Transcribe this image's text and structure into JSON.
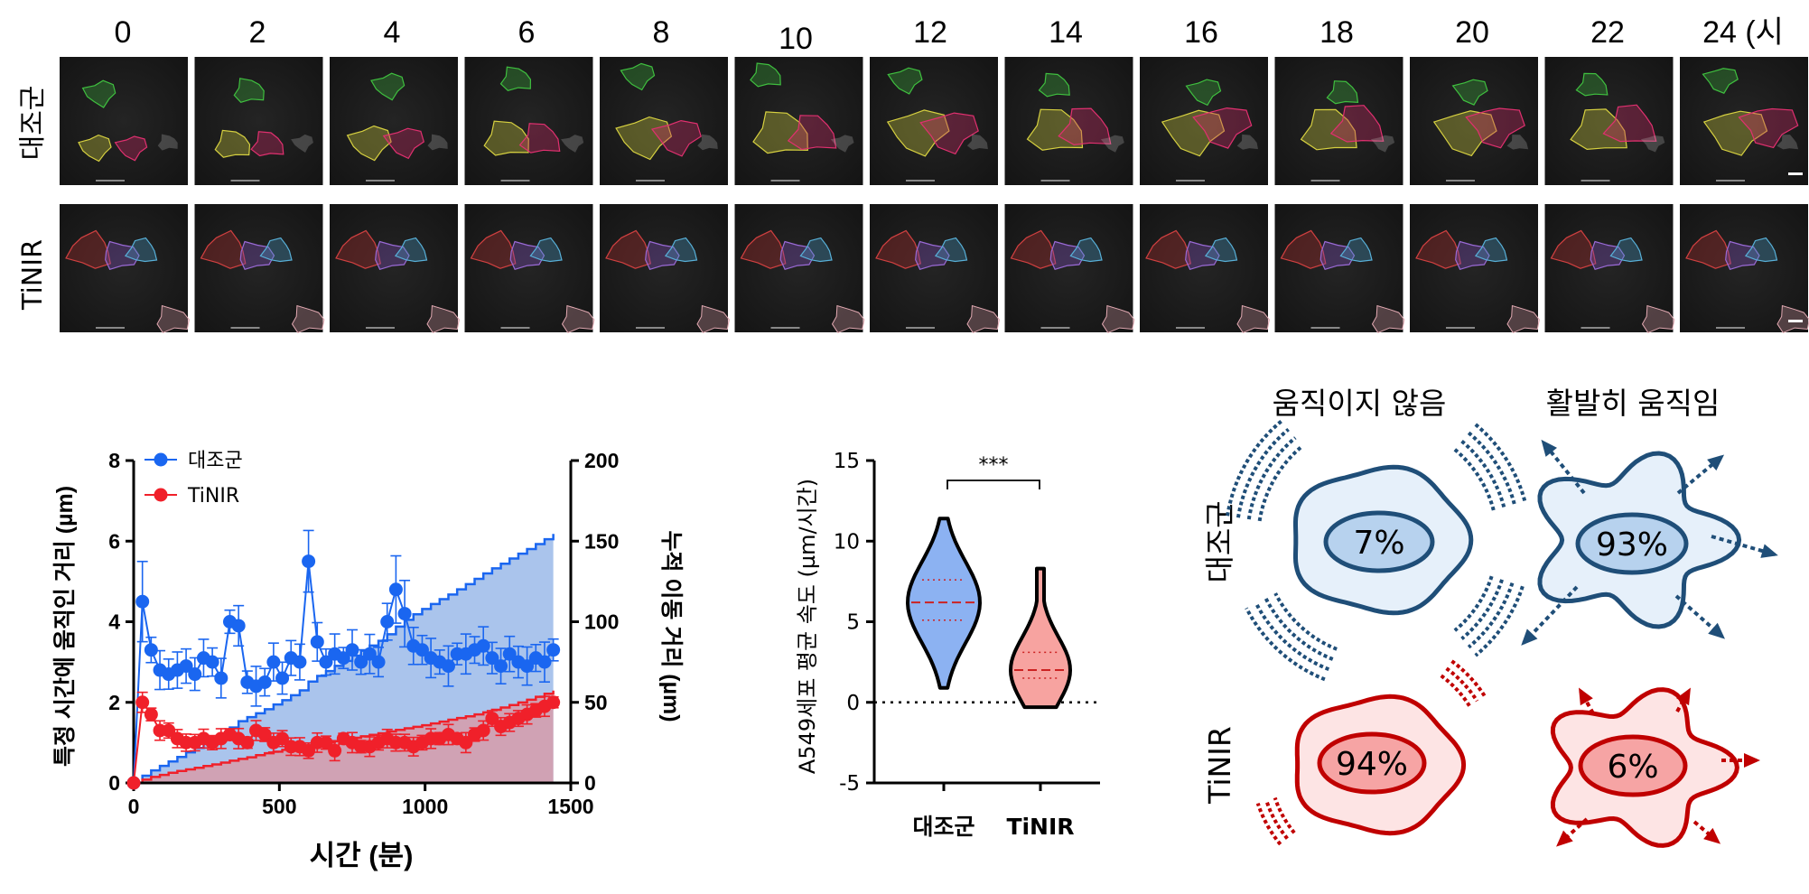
{
  "time_points": [
    "0",
    "2",
    "4",
    "6",
    "8",
    "10",
    "12",
    "14",
    "16",
    "18",
    "20",
    "22",
    "24 (시"
  ],
  "row_labels": [
    "대조군",
    "TiNIR"
  ],
  "panel_b": {
    "legend": [
      "대조군",
      "TiNIR"
    ],
    "xlabel": "시간 (분)",
    "ylabel_left": "특정 시간에 움직인 거리 (µm)",
    "ylabel_right": "누적 이동 거리 (µm)",
    "x_ticks": [
      "0",
      "500",
      "1000",
      "1500"
    ],
    "y_left_ticks": [
      "0",
      "2",
      "4",
      "6",
      "8"
    ],
    "y_right_ticks": [
      "0",
      "50",
      "100",
      "150",
      "200"
    ]
  },
  "panel_c": {
    "ylabel": "A549세포 평균 속도 (µm/시간)",
    "y_ticks": [
      "-5",
      "0",
      "5",
      "10",
      "15"
    ],
    "categories": [
      "대조군",
      "TiNIR"
    ],
    "significance": "***"
  },
  "panel_d": {
    "col_labels": [
      "움직이지 않음",
      "활발히 움직임"
    ],
    "row_labels": [
      "대조군",
      "TiNIR"
    ],
    "cells": [
      [
        "7%",
        "93%"
      ],
      [
        "94%",
        "6%"
      ]
    ]
  },
  "colors": {
    "control": "#1a66f0",
    "tinir": "#f0202a",
    "control_area": "#aac4ec",
    "tinir_area": "#d0a2b4",
    "cell_control_fill": "#e6f0fa",
    "cell_control_stroke": "#1f4e78",
    "cell_tinir_fill": "#fde4e4",
    "cell_tinir_stroke": "#c00000"
  },
  "chart_data": [
    {
      "type": "line",
      "x": [
        0,
        30,
        60,
        90,
        120,
        150,
        180,
        210,
        240,
        270,
        300,
        330,
        360,
        390,
        420,
        450,
        480,
        510,
        540,
        570,
        600,
        630,
        660,
        690,
        720,
        750,
        780,
        810,
        840,
        870,
        900,
        930,
        960,
        990,
        1020,
        1050,
        1080,
        1110,
        1140,
        1170,
        1200,
        1230,
        1260,
        1290,
        1320,
        1350,
        1380,
        1410,
        1440
      ],
      "xlim": [
        0,
        1500
      ],
      "ylim": [
        0,
        8
      ],
      "y2lim": [
        0,
        200
      ],
      "series": [
        {
          "name": "대조군",
          "axis": "left",
          "values": [
            0,
            4.5,
            3.3,
            2.8,
            2.7,
            2.8,
            2.9,
            2.7,
            3.1,
            3.0,
            2.6,
            4.0,
            3.9,
            2.5,
            2.4,
            2.5,
            3.0,
            2.6,
            3.1,
            3.0,
            5.5,
            3.5,
            3.0,
            3.2,
            3.1,
            3.3,
            3.0,
            3.2,
            3.0,
            4.0,
            4.8,
            4.2,
            3.4,
            3.3,
            3.1,
            3.0,
            2.9,
            3.2,
            3.2,
            3.3,
            3.4,
            3.1,
            2.9,
            3.2,
            3.0,
            2.9,
            3.1,
            3.0,
            3.3
          ]
        },
        {
          "name": "TiNIR",
          "axis": "left",
          "values": [
            0,
            2.0,
            1.7,
            1.3,
            1.3,
            1.1,
            1.0,
            1.0,
            1.1,
            1.0,
            1.1,
            1.2,
            1.1,
            1.0,
            1.3,
            1.2,
            1.0,
            1.1,
            0.9,
            0.9,
            0.8,
            1.0,
            1.0,
            0.8,
            1.1,
            1.0,
            0.9,
            0.9,
            1.0,
            1.1,
            1.0,
            1.0,
            0.9,
            1.0,
            1.1,
            1.1,
            1.2,
            1.1,
            1.0,
            1.2,
            1.3,
            1.6,
            1.4,
            1.5,
            1.6,
            1.7,
            1.8,
            1.9,
            2.0
          ]
        },
        {
          "name": "대조군 (누적)",
          "axis": "right",
          "values": [
            0,
            4.5,
            7.8,
            10.6,
            13.3,
            16.1,
            19.0,
            21.7,
            24.8,
            27.8,
            30.4,
            34.4,
            38.3,
            40.8,
            43.2,
            45.7,
            48.7,
            51.3,
            54.4,
            57.4,
            62.9,
            66.4,
            69.4,
            72.6,
            75.7,
            79.0,
            82.0,
            85.2,
            88.2,
            92.2,
            97.0,
            101.2,
            104.6,
            107.9,
            111.0,
            114.0,
            116.9,
            120.1,
            123.3,
            126.6,
            130.0,
            133.1,
            136.0,
            139.2,
            142.2,
            145.1,
            148.2,
            151.2,
            154.5
          ]
        },
        {
          "name": "TiNIR (누적)",
          "axis": "right",
          "values": [
            0,
            2.0,
            3.7,
            5.0,
            6.3,
            7.4,
            8.4,
            9.4,
            10.5,
            11.5,
            12.6,
            13.8,
            14.9,
            15.9,
            17.2,
            18.4,
            19.4,
            20.5,
            21.4,
            22.3,
            23.1,
            24.1,
            25.1,
            25.9,
            27.0,
            28.0,
            28.9,
            29.8,
            30.8,
            31.9,
            32.9,
            33.9,
            34.8,
            35.8,
            36.9,
            38.0,
            39.2,
            40.3,
            41.3,
            42.5,
            43.8,
            45.4,
            46.8,
            48.3,
            49.9,
            51.6,
            53.4,
            55.3,
            57.3
          ]
        }
      ]
    },
    {
      "type": "violin",
      "categories": [
        "대조군",
        "TiNIR"
      ],
      "ylim": [
        -5,
        15
      ],
      "series": [
        {
          "name": "대조군",
          "median": 6.2,
          "q1": 5.1,
          "q3": 7.6,
          "min": 0.9,
          "max": 11.4
        },
        {
          "name": "TiNIR",
          "median": 2.0,
          "q1": 1.5,
          "q3": 3.1,
          "min": -0.3,
          "max": 8.3
        }
      ],
      "significance": "***"
    }
  ]
}
